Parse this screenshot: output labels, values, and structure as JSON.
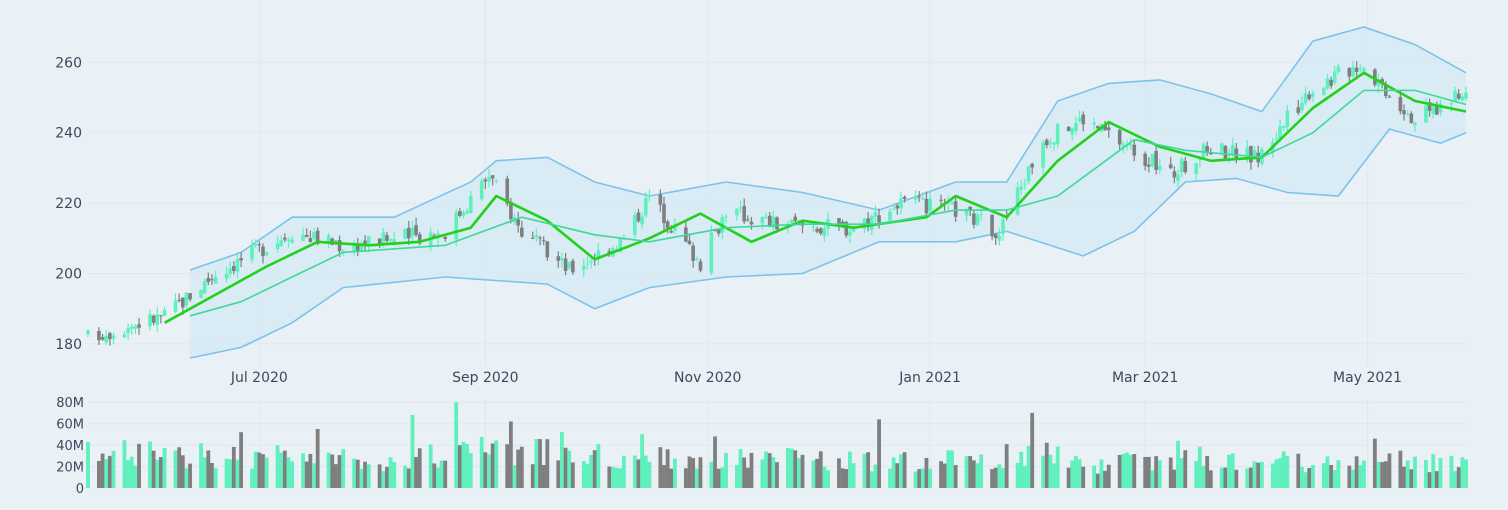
{
  "colors": {
    "background": "#e9f1f7",
    "grid": "#dfe8f0",
    "bands_fill": "#d7eaf4",
    "bands_line": "#7cc3ea",
    "ma_fast": "#22d11a",
    "ma_slow": "#3fd89a",
    "increasing": "#5ff0bd",
    "decreasing": "#7f7f7f"
  },
  "chart_data": [
    {
      "type": "candlestick",
      "x_axis_type": "date",
      "x_ticks": [
        "Jul 2020",
        "Sep 2020",
        "Nov 2020",
        "Jan 2021",
        "Mar 2021",
        "May 2021"
      ],
      "x_tick_dates": [
        "2020-07-01",
        "2020-09-01",
        "2020-11-01",
        "2021-01-01",
        "2021-03-01",
        "2021-05-01"
      ],
      "xlim": [
        "2020-05-15",
        "2021-05-28"
      ],
      "y_ticks": [
        "180",
        "200",
        "220",
        "240",
        "260"
      ],
      "ylim": [
        176,
        272
      ],
      "grid": true,
      "price_keypoints": [
        [
          "2020-05-15",
          182
        ],
        [
          "2020-06-05",
          188
        ],
        [
          "2020-06-19",
          200
        ],
        [
          "2020-07-10",
          212
        ],
        [
          "2020-07-24",
          208
        ],
        [
          "2020-08-07",
          210
        ],
        [
          "2020-08-21",
          212
        ],
        [
          "2020-09-02",
          228
        ],
        [
          "2020-09-11",
          212
        ],
        [
          "2020-09-24",
          201
        ],
        [
          "2020-10-09",
          210
        ],
        [
          "2020-10-16",
          222
        ],
        [
          "2020-10-30",
          203
        ],
        [
          "2020-11-06",
          218
        ],
        [
          "2020-11-20",
          214
        ],
        [
          "2020-12-10",
          213
        ],
        [
          "2020-12-24",
          220
        ],
        [
          "2021-01-08",
          218
        ],
        [
          "2021-01-20",
          212
        ],
        [
          "2021-02-01",
          238
        ],
        [
          "2021-02-12",
          244
        ],
        [
          "2021-02-26",
          235
        ],
        [
          "2021-03-08",
          228
        ],
        [
          "2021-03-19",
          236
        ],
        [
          "2021-04-01",
          233
        ],
        [
          "2021-04-15",
          252
        ],
        [
          "2021-04-29",
          260
        ],
        [
          "2021-05-14",
          244
        ],
        [
          "2021-05-28",
          251
        ]
      ],
      "bollinger": {
        "start": "2020-06-12",
        "upper": [
          [
            "2020-06-12",
            201
          ],
          [
            "2020-06-26",
            206
          ],
          [
            "2020-07-10",
            216
          ],
          [
            "2020-08-07",
            216
          ],
          [
            "2020-08-28",
            226
          ],
          [
            "2020-09-04",
            232
          ],
          [
            "2020-09-18",
            233
          ],
          [
            "2020-10-01",
            226
          ],
          [
            "2020-10-16",
            222
          ],
          [
            "2020-11-06",
            226
          ],
          [
            "2020-11-27",
            223
          ],
          [
            "2020-12-18",
            218
          ],
          [
            "2021-01-08",
            226
          ],
          [
            "2021-01-22",
            226
          ],
          [
            "2021-02-05",
            249
          ],
          [
            "2021-02-19",
            254
          ],
          [
            "2021-03-05",
            255
          ],
          [
            "2021-03-19",
            251
          ],
          [
            "2021-04-02",
            246
          ],
          [
            "2021-04-16",
            266
          ],
          [
            "2021-04-30",
            270
          ],
          [
            "2021-05-14",
            265
          ],
          [
            "2021-05-28",
            257
          ]
        ],
        "lower": [
          [
            "2020-06-12",
            176
          ],
          [
            "2020-06-26",
            179
          ],
          [
            "2020-07-10",
            186
          ],
          [
            "2020-07-24",
            196
          ],
          [
            "2020-08-21",
            199
          ],
          [
            "2020-09-18",
            197
          ],
          [
            "2020-10-01",
            190
          ],
          [
            "2020-10-16",
            196
          ],
          [
            "2020-11-06",
            199
          ],
          [
            "2020-11-27",
            200
          ],
          [
            "2020-12-18",
            209
          ],
          [
            "2021-01-08",
            209
          ],
          [
            "2021-01-22",
            212
          ],
          [
            "2021-02-12",
            205
          ],
          [
            "2021-02-26",
            212
          ],
          [
            "2021-03-12",
            226
          ],
          [
            "2021-03-26",
            227
          ],
          [
            "2021-04-09",
            223
          ],
          [
            "2021-04-23",
            222
          ],
          [
            "2021-05-07",
            241
          ],
          [
            "2021-05-21",
            237
          ],
          [
            "2021-05-28",
            240
          ]
        ]
      },
      "moving_averages": [
        {
          "color_key": "ma_fast",
          "points": [
            [
              "2020-06-05",
              186
            ],
            [
              "2020-06-19",
              194
            ],
            [
              "2020-07-03",
              202
            ],
            [
              "2020-07-17",
              209
            ],
            [
              "2020-07-31",
              208
            ],
            [
              "2020-08-14",
              209
            ],
            [
              "2020-08-28",
              213
            ],
            [
              "2020-09-04",
              222
            ],
            [
              "2020-09-18",
              215
            ],
            [
              "2020-10-01",
              204
            ],
            [
              "2020-10-16",
              210
            ],
            [
              "2020-10-30",
              217
            ],
            [
              "2020-11-13",
              209
            ],
            [
              "2020-11-27",
              215
            ],
            [
              "2020-12-11",
              213
            ],
            [
              "2020-12-31",
              216
            ],
            [
              "2021-01-08",
              222
            ],
            [
              "2021-01-22",
              216
            ],
            [
              "2021-02-05",
              232
            ],
            [
              "2021-02-19",
              243
            ],
            [
              "2021-03-05",
              236
            ],
            [
              "2021-03-19",
              232
            ],
            [
              "2021-04-02",
              233
            ],
            [
              "2021-04-16",
              247
            ],
            [
              "2021-04-30",
              257
            ],
            [
              "2021-05-14",
              249
            ],
            [
              "2021-05-28",
              246
            ]
          ]
        },
        {
          "color_key": "ma_slow",
          "points": [
            [
              "2020-06-12",
              188
            ],
            [
              "2020-06-26",
              192
            ],
            [
              "2020-07-10",
              199
            ],
            [
              "2020-07-24",
              206
            ],
            [
              "2020-08-21",
              208
            ],
            [
              "2020-09-11",
              216
            ],
            [
              "2020-10-01",
              211
            ],
            [
              "2020-10-16",
              209
            ],
            [
              "2020-11-06",
              213
            ],
            [
              "2020-11-27",
              214
            ],
            [
              "2020-12-18",
              214
            ],
            [
              "2021-01-08",
              218
            ],
            [
              "2021-01-22",
              218
            ],
            [
              "2021-02-05",
              222
            ],
            [
              "2021-02-26",
              238
            ],
            [
              "2021-03-12",
              235
            ],
            [
              "2021-04-02",
              233
            ],
            [
              "2021-04-16",
              240
            ],
            [
              "2021-04-30",
              252
            ],
            [
              "2021-05-14",
              252
            ],
            [
              "2021-05-28",
              248
            ]
          ]
        }
      ]
    },
    {
      "type": "bar",
      "y_ticks": [
        "80M",
        "60M",
        "40M",
        "20M",
        "0"
      ],
      "ylim": [
        0,
        82
      ],
      "volume_keypoints": [
        [
          "2020-05-15",
          35
        ],
        [
          "2020-06-15",
          33
        ],
        [
          "2020-07-15",
          30
        ],
        [
          "2020-08-10",
          28
        ],
        [
          "2020-08-28",
          38
        ],
        [
          "2020-09-15",
          36
        ],
        [
          "2020-10-15",
          30
        ],
        [
          "2020-11-15",
          30
        ],
        [
          "2020-12-15",
          26
        ],
        [
          "2021-01-15",
          28
        ],
        [
          "2021-01-29",
          36
        ],
        [
          "2021-02-15",
          24
        ],
        [
          "2021-03-15",
          30
        ],
        [
          "2021-04-15",
          26
        ],
        [
          "2021-05-15",
          28
        ],
        [
          "2021-05-28",
          22
        ]
      ],
      "volume_spikes": [
        [
          "2020-06-26",
          52
        ],
        [
          "2020-07-17",
          55
        ],
        [
          "2020-08-12",
          68
        ],
        [
          "2020-08-24",
          80
        ],
        [
          "2020-09-08",
          62
        ],
        [
          "2020-09-22",
          52
        ],
        [
          "2020-10-14",
          50
        ],
        [
          "2020-11-03",
          48
        ],
        [
          "2020-12-18",
          64
        ],
        [
          "2021-01-29",
          70
        ],
        [
          "2021-03-10",
          44
        ],
        [
          "2021-05-03",
          46
        ]
      ]
    }
  ]
}
